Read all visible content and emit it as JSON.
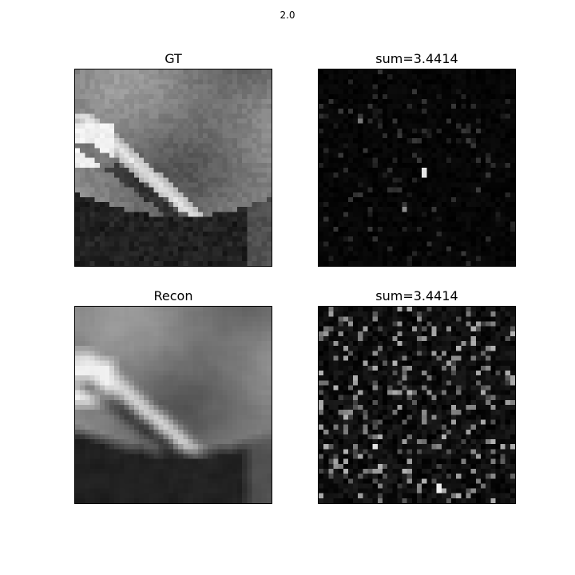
{
  "figure": {
    "suptitle": "2.0",
    "panels": [
      {
        "title": "GT",
        "kind": "gt-image"
      },
      {
        "title": "sum=3.4414",
        "kind": "error-map-sparse"
      },
      {
        "title": "Recon",
        "kind": "recon-image"
      },
      {
        "title": "sum=3.4414",
        "kind": "error-map-dense"
      }
    ]
  }
}
